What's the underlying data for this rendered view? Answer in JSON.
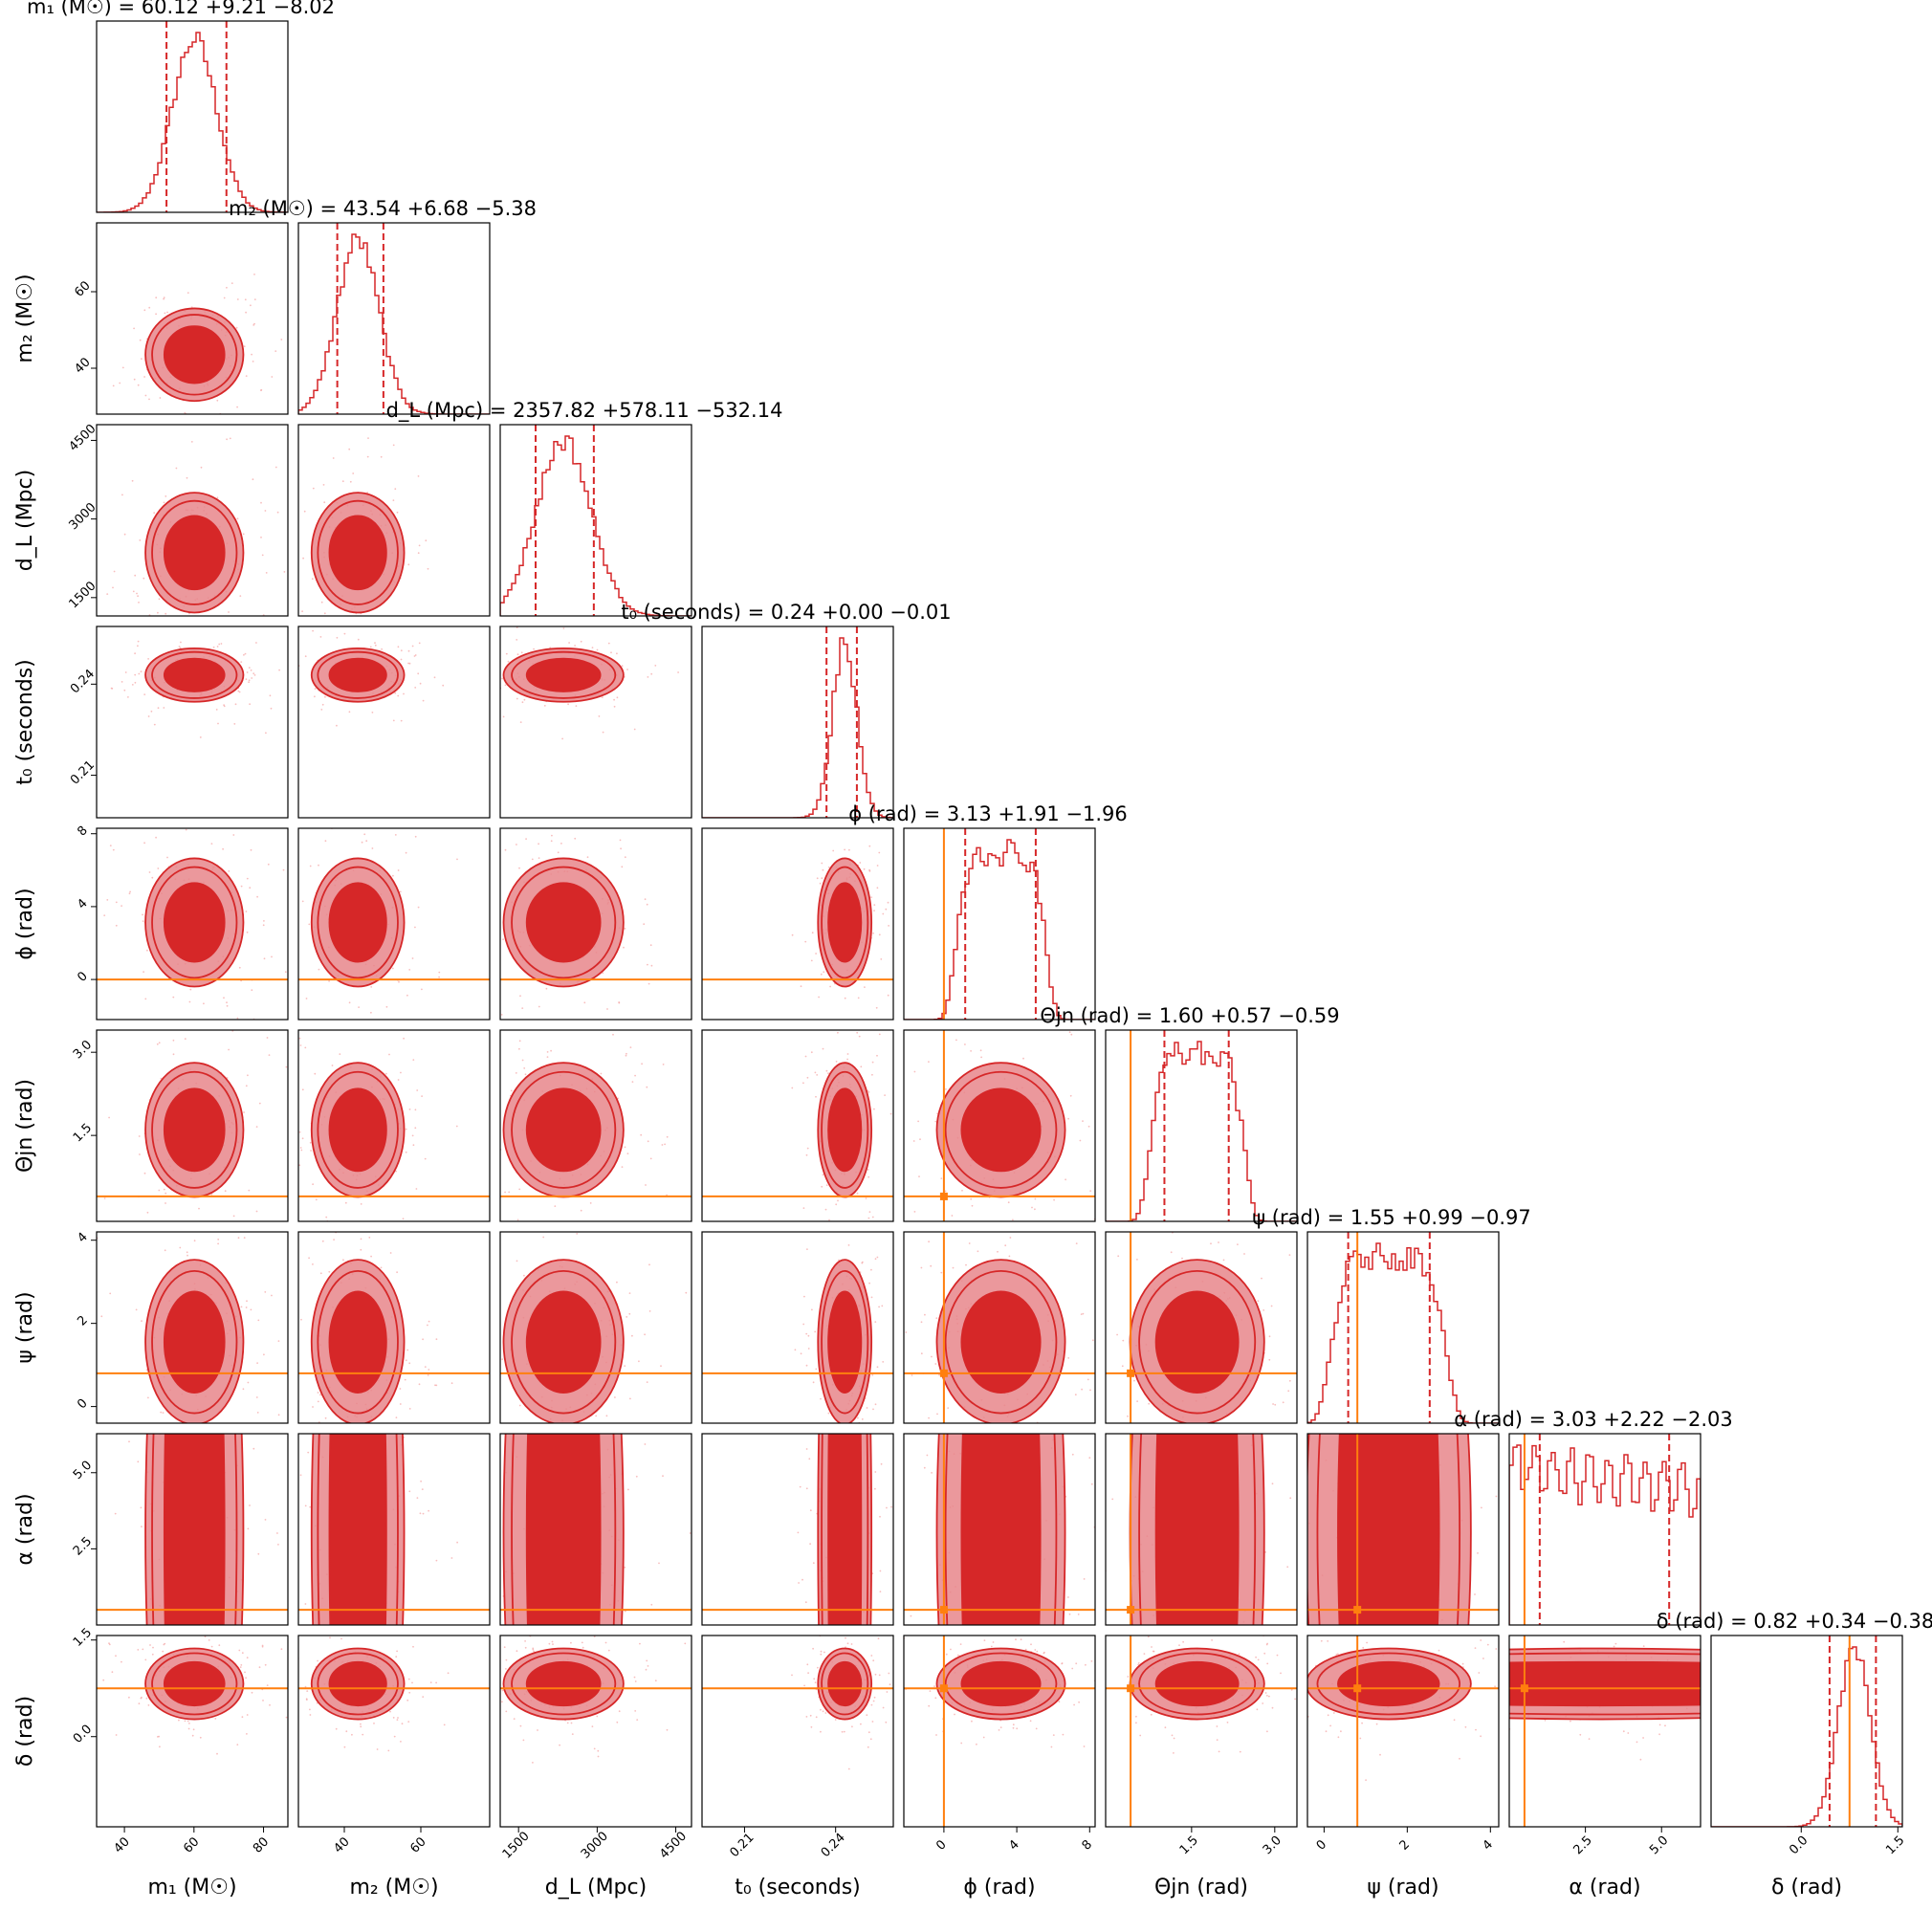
{
  "chart_data": {
    "type": "corner",
    "colors": {
      "posterior": "#d62728",
      "truth": "#ff7f0e",
      "frame": "#000000"
    },
    "params": [
      {
        "key": "m1",
        "label": "m₁ (M☉)",
        "title": "m₁ (M☉) = 60.12 +9.21 −8.02",
        "median": 60.12,
        "plus": 9.21,
        "minus": 8.02,
        "sd": 6.4,
        "range": [
          32,
          87
        ],
        "ticks": [
          "40",
          "60",
          "80"
        ],
        "tick_values": [
          40,
          60,
          80
        ],
        "truth": null
      },
      {
        "key": "m2",
        "label": "m₂ (M☉)",
        "title": "m₂ (M☉) = 43.54 +6.68 −5.38",
        "median": 43.54,
        "plus": 6.68,
        "minus": 5.38,
        "sd": 5.5,
        "range": [
          28,
          78
        ],
        "ticks": [
          "40",
          "60"
        ],
        "tick_values": [
          40,
          60
        ],
        "truth": null
      },
      {
        "key": "dL",
        "label": "d_L (Mpc)",
        "title": "d_L (Mpc) = 2357.82 +578.11 −532.14",
        "median": 2357.82,
        "plus": 578.11,
        "minus": 532.14,
        "sd": 520,
        "range": [
          1150,
          4800
        ],
        "ticks": [
          "1500",
          "3000",
          "4500"
        ],
        "tick_values": [
          1500,
          3000,
          4500
        ],
        "truth": null
      },
      {
        "key": "t0",
        "label": "t₀ (seconds)",
        "title": "t₀ (seconds) = 0.24 +0.00 −0.01",
        "median": 0.243,
        "plus": 0.004,
        "minus": 0.006,
        "sd": 0.004,
        "range": [
          0.196,
          0.259
        ],
        "ticks": [
          "0.21",
          "0.24"
        ],
        "tick_values": [
          0.21,
          0.24
        ],
        "truth": null
      },
      {
        "key": "phi",
        "label": "ϕ (rad)",
        "title": "ϕ (rad) = 3.13 +1.91 −1.96",
        "median": 3.13,
        "plus": 1.91,
        "minus": 1.96,
        "sd": 1.6,
        "range": [
          -2.2,
          8.3
        ],
        "ticks": [
          "0",
          "4",
          "8"
        ],
        "tick_values": [
          0,
          4,
          8
        ],
        "truth": 0
      },
      {
        "key": "theta_jn",
        "label": "Θjn (rad)",
        "title": "Θjn (rad) = 1.60 +0.57 −0.59",
        "median": 1.6,
        "plus": 0.57,
        "minus": 0.59,
        "sd": 0.55,
        "range": [
          -0.05,
          3.4
        ],
        "ticks": [
          "1.5",
          "3.0"
        ],
        "tick_values": [
          1.5,
          3.0
        ],
        "truth": 0.4
      },
      {
        "key": "psi",
        "label": "ψ (rad)",
        "title": "ψ (rad) = 1.55 +0.99 −0.97",
        "median": 1.55,
        "plus": 0.99,
        "minus": 0.97,
        "sd": 0.9,
        "range": [
          -0.4,
          4.2
        ],
        "ticks": [
          "0",
          "2",
          "4"
        ],
        "tick_values": [
          0,
          2,
          4
        ],
        "truth": 0.8
      },
      {
        "key": "alpha",
        "label": "α (rad)",
        "title": "α (rad) = 3.03 +2.22 −2.03",
        "median": 3.03,
        "plus": 2.22,
        "minus": 2.03,
        "sd": 1.8,
        "range": [
          0,
          6.28
        ],
        "ticks": [
          "2.5",
          "5.0"
        ],
        "tick_values": [
          2.5,
          5.0
        ],
        "truth": 0.5
      },
      {
        "key": "delta",
        "label": "δ (rad)",
        "title": "δ (rad) = 0.82 +0.34 −0.38",
        "median": 0.82,
        "plus": 0.34,
        "minus": 0.38,
        "sd": 0.25,
        "range": [
          -1.4,
          1.57
        ],
        "ticks": [
          "0.0",
          "1.5"
        ],
        "tick_values": [
          0.0,
          1.5
        ],
        "truth": 0.75
      }
    ]
  }
}
